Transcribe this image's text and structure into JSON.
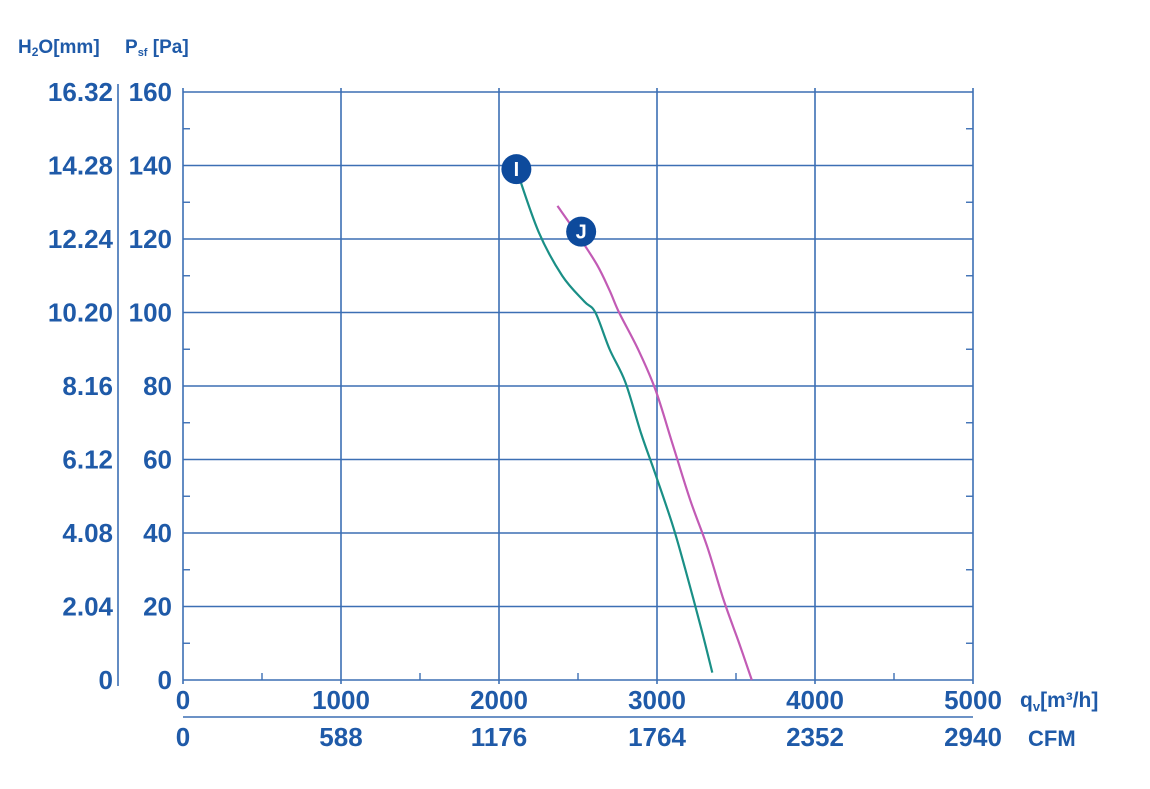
{
  "chart_data": {
    "type": "line",
    "axis_labels": {
      "left_outer": {
        "main": "H",
        "sub": "2",
        "rest": "O[mm]"
      },
      "left_inner": {
        "main": "P",
        "sub": "sf",
        "rest": " [Pa]"
      },
      "bottom_primary": {
        "main": "q",
        "sub": "v",
        "rest": "[m³/h]"
      },
      "bottom_secondary": "CFM"
    },
    "y_ticks_pa": [
      "0",
      "20",
      "40",
      "60",
      "80",
      "100",
      "120",
      "140",
      "160"
    ],
    "y_ticks_mm": [
      "0",
      "2.04",
      "4.08",
      "6.12",
      "8.16",
      "10.20",
      "12.24",
      "14.28",
      "16.32"
    ],
    "x_ticks_m3h": [
      "0",
      "1000",
      "2000",
      "3000",
      "4000",
      "5000"
    ],
    "x_ticks_cfm": [
      "0",
      "588",
      "1176",
      "1764",
      "2352",
      "2940"
    ],
    "xlim": [
      0,
      5000
    ],
    "ylim": [
      0,
      160
    ],
    "grid": true,
    "series": [
      {
        "name": "I",
        "color": "#1a8f86",
        "points": [
          [
            2110,
            139
          ],
          [
            2250,
            122
          ],
          [
            2400,
            110
          ],
          [
            2540,
            103
          ],
          [
            2610,
            100
          ],
          [
            2700,
            90
          ],
          [
            2800,
            81
          ],
          [
            2900,
            67
          ],
          [
            2990,
            56
          ],
          [
            3100,
            42
          ],
          [
            3180,
            30
          ],
          [
            3280,
            14
          ],
          [
            3350,
            2
          ]
        ]
      },
      {
        "name": "J",
        "color": "#c25bb5",
        "points": [
          [
            2370,
            129
          ],
          [
            2500,
            121
          ],
          [
            2620,
            113
          ],
          [
            2700,
            106
          ],
          [
            2760,
            100
          ],
          [
            2880,
            90
          ],
          [
            2990,
            79
          ],
          [
            3100,
            64
          ],
          [
            3210,
            49
          ],
          [
            3320,
            36
          ],
          [
            3420,
            22
          ],
          [
            3520,
            10
          ],
          [
            3600,
            0
          ]
        ]
      }
    ],
    "marker_color": "#0d4a9c"
  }
}
